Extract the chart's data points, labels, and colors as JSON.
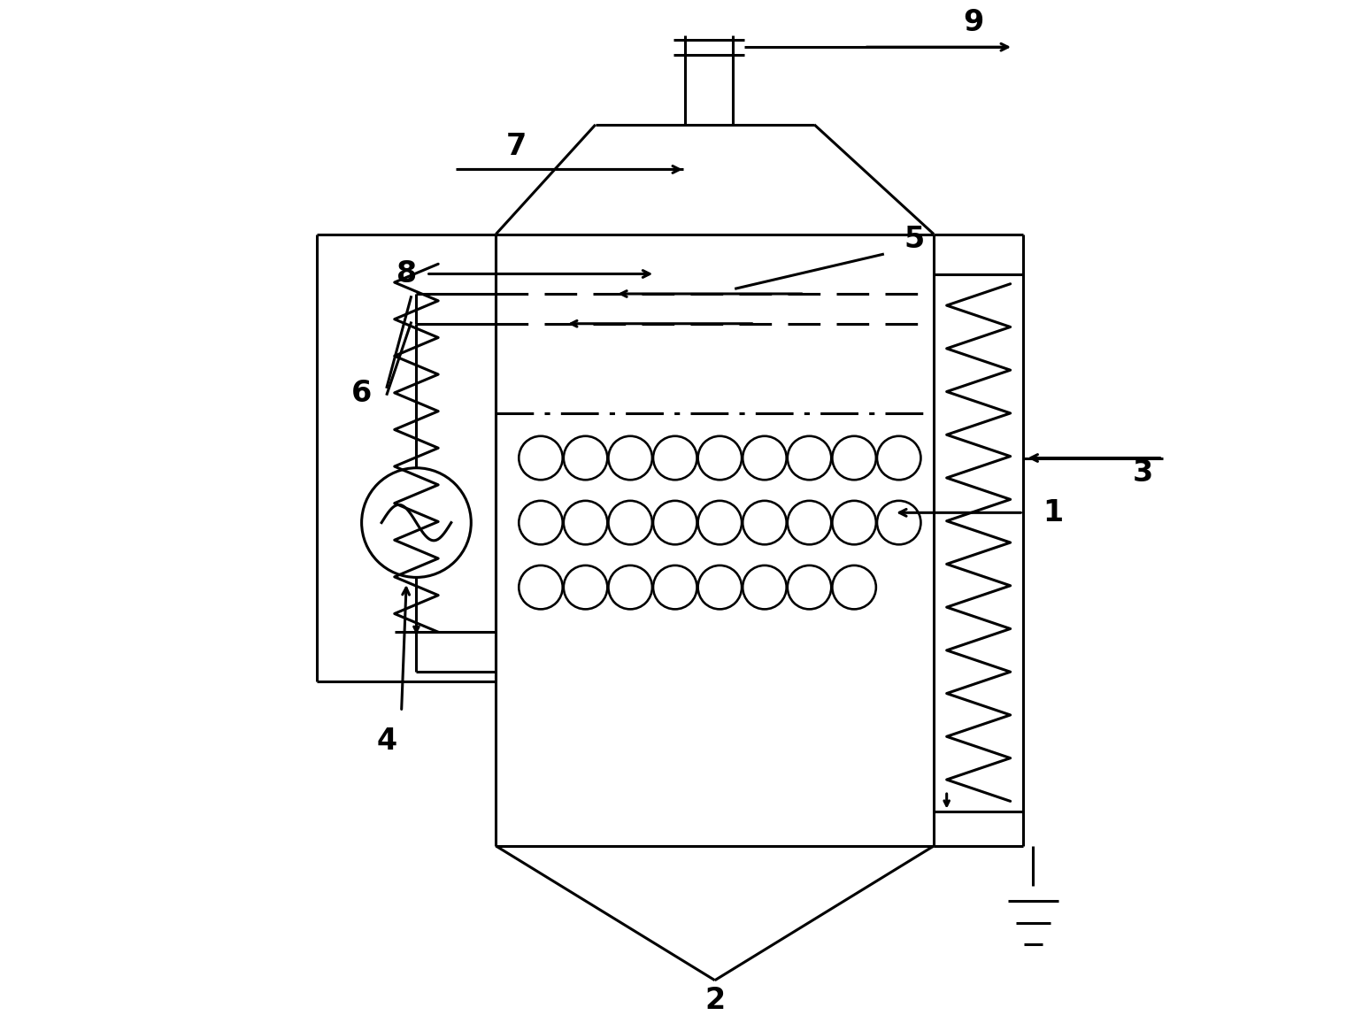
{
  "bg_color": "#ffffff",
  "line_color": "#000000",
  "lw": 2.2,
  "fig_width": 15.48,
  "fig_height": 11.56,
  "label_fontsize": 24
}
